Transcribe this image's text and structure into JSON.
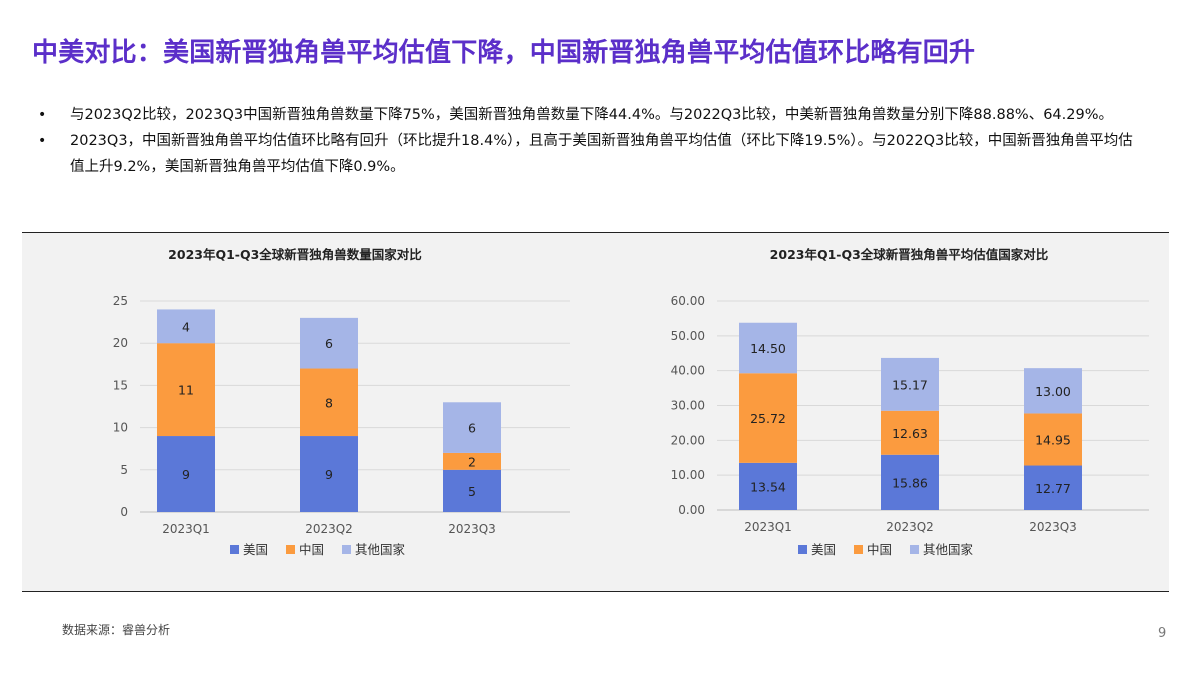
{
  "page": {
    "title": "中美对比：美国新晋独角兽平均估值下降，中国新晋独角兽平均估值环比略有回升",
    "bullets": [
      "与2023Q2比较，2023Q3中国新晋独角兽数量下降75%，美国新晋独角兽数量下降44.4%。与2022Q3比较，中美新晋独角兽数量分别下降88.88%、64.29%。",
      "2023Q3，中国新晋独角兽平均估值环比略有回升（环比提升18.4%），且高于美国新晋独角兽平均估值（环比下降19.5%）。与2022Q3比较，中国新晋独角兽平均估值上升9.2%，美国新晋独角兽平均估值下降0.9%。"
    ],
    "source": "数据来源：睿兽分析",
    "page_number": "9"
  },
  "colors": {
    "title": "#5b2fc9",
    "us": "#5b78d8",
    "china": "#fb9b3f",
    "other": "#a5b5e7",
    "panel_bg": "#f2f2f2",
    "grid": "#d9d9d9"
  },
  "chart_data": [
    {
      "type": "bar",
      "stacked": true,
      "title": "2023年Q1-Q3全球新晋独角兽数量国家对比",
      "categories": [
        "2023Q1",
        "2023Q2",
        "2023Q3"
      ],
      "series": [
        {
          "name": "美国",
          "values": [
            9,
            9,
            5
          ],
          "labels": [
            "9",
            "9",
            "5"
          ]
        },
        {
          "name": "中国",
          "values": [
            11,
            8,
            2
          ],
          "labels": [
            "11",
            "8",
            "2"
          ]
        },
        {
          "name": "其他国家",
          "values": [
            4,
            6,
            6
          ],
          "labels": [
            "4",
            "6",
            "6"
          ]
        }
      ],
      "ylim": [
        0,
        25
      ],
      "yticks": [
        0,
        5,
        10,
        15,
        20,
        25
      ],
      "ytick_labels": [
        "0",
        "5",
        "10",
        "15",
        "20",
        "25"
      ],
      "grid": true,
      "legend_position": "bottom"
    },
    {
      "type": "bar",
      "stacked": true,
      "title": "2023年Q1-Q3全球新晋独角兽平均估值国家对比",
      "categories": [
        "2023Q1",
        "2023Q2",
        "2023Q3"
      ],
      "series": [
        {
          "name": "美国",
          "values": [
            13.54,
            15.86,
            12.77
          ],
          "labels": [
            "13.54",
            "15.86",
            "12.77"
          ]
        },
        {
          "name": "中国",
          "values": [
            25.72,
            12.63,
            14.95
          ],
          "labels": [
            "25.72",
            "12.63",
            "14.95"
          ]
        },
        {
          "name": "其他国家",
          "values": [
            14.5,
            15.17,
            13.0
          ],
          "labels": [
            "14.50",
            "15.17",
            "13.00"
          ]
        }
      ],
      "ylim": [
        0,
        60
      ],
      "yticks": [
        0,
        10,
        20,
        30,
        40,
        50,
        60
      ],
      "ytick_labels": [
        "0.00",
        "10.00",
        "20.00",
        "30.00",
        "40.00",
        "50.00",
        "60.00"
      ],
      "grid": true,
      "legend_position": "bottom"
    }
  ]
}
